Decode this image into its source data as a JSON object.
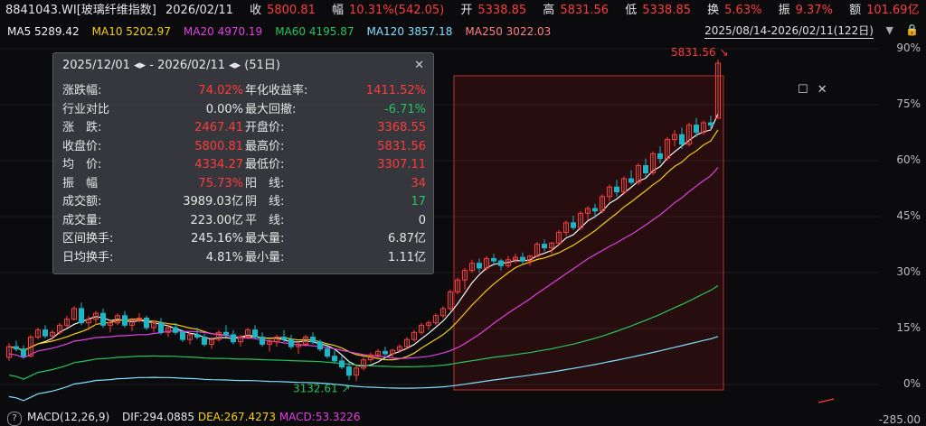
{
  "quote_bar": {
    "code": "8841043.WI[玻璃纤维指数]",
    "date": "2026/02/11",
    "close_label": "收",
    "close": "5800.81",
    "chg_label": "幅",
    "chg": "10.31%(542.05)",
    "open_label": "开",
    "open": "5338.85",
    "high_label": "高",
    "high": "5831.56",
    "low_label": "低",
    "low": "5338.85",
    "turnover_label": "换",
    "turnover": "5.63%",
    "amp_label": "振",
    "amp": "9.37%",
    "amount_label": "额",
    "amount": "101.69亿"
  },
  "ma_bar": {
    "items": [
      {
        "label": "MA5 5289.42",
        "color": "#f5f5f5"
      },
      {
        "label": "MA10 5202.97",
        "color": "#f5d000"
      },
      {
        "label": "MA20 4970.19",
        "color": "#e040e0"
      },
      {
        "label": "MA60 4195.87",
        "color": "#22c55e"
      },
      {
        "label": "MA120 3857.18",
        "color": "#7fe0ff"
      },
      {
        "label": "MA250 3022.03",
        "color": "#ff8080"
      }
    ],
    "range": "2025/08/14-2026/02/11(122日)"
  },
  "y_axis": [
    "90%",
    "75%",
    "60%",
    "45%",
    "30%",
    "15%",
    "0%",
    "-285.00"
  ],
  "stats_panel": {
    "header": "2025/12/01 ◂▸ - 2026/02/11 ◂▸    (51日)",
    "left": [
      {
        "k": "涨跌幅:",
        "v": "74.02%",
        "c": "red"
      },
      {
        "k": "行业对比",
        "v": "0.00%",
        "c": "white"
      },
      {
        "k": "涨　跌:",
        "v": "2467.41",
        "c": "red"
      },
      {
        "k": "收盘价:",
        "v": "5800.81",
        "c": "red"
      },
      {
        "k": "均　价:",
        "v": "4334.27",
        "c": "red"
      },
      {
        "k": "振　幅",
        "v": "75.73%",
        "c": "red"
      },
      {
        "k": "成交额:",
        "v": "3989.03亿",
        "c": "white"
      },
      {
        "k": "成交量:",
        "v": "223.00亿",
        "c": "white"
      },
      {
        "k": "区间换手:",
        "v": "245.16%",
        "c": "white"
      },
      {
        "k": "日均换手:",
        "v": "4.81%",
        "c": "white"
      }
    ],
    "right": [
      {
        "k": "年化收益率:",
        "v": "1411.52%",
        "c": "red"
      },
      {
        "k": "最大回撤:",
        "v": "-6.71%",
        "c": "green"
      },
      {
        "k": "开盘价:",
        "v": "3368.55",
        "c": "red"
      },
      {
        "k": "最高价:",
        "v": "5831.56",
        "c": "red"
      },
      {
        "k": "最低价:",
        "v": "3307.11",
        "c": "red"
      },
      {
        "k": "阳　线:",
        "v": "34",
        "c": "red"
      },
      {
        "k": "阴　线:",
        "v": "17",
        "c": "green"
      },
      {
        "k": "平　线:",
        "v": "0",
        "c": "white"
      },
      {
        "k": "最大量:",
        "v": "6.87亿",
        "c": "white"
      },
      {
        "k": "最小量:",
        "v": "1.11亿",
        "c": "white"
      }
    ]
  },
  "annotations": {
    "high_marker": "5831.56",
    "low_marker": "3132.61"
  },
  "macd_bar": {
    "label": "MACD(12,26,9)",
    "dif": "DIF:294.0885",
    "dea": "DEA:267.4273",
    "macd": "MACD:53.3226"
  },
  "chart_data": {
    "type": "candlestick",
    "candles": [
      [
        3330,
        3450,
        3300,
        3420
      ],
      [
        3420,
        3470,
        3380,
        3400
      ],
      [
        3400,
        3430,
        3320,
        3340
      ],
      [
        3340,
        3520,
        3330,
        3500
      ],
      [
        3500,
        3580,
        3480,
        3560
      ],
      [
        3560,
        3600,
        3490,
        3510
      ],
      [
        3510,
        3560,
        3470,
        3540
      ],
      [
        3540,
        3620,
        3520,
        3600
      ],
      [
        3600,
        3680,
        3580,
        3650
      ],
      [
        3650,
        3760,
        3640,
        3740
      ],
      [
        3740,
        3790,
        3600,
        3620
      ],
      [
        3620,
        3680,
        3560,
        3650
      ],
      [
        3650,
        3720,
        3600,
        3700
      ],
      [
        3700,
        3740,
        3580,
        3600
      ],
      [
        3600,
        3650,
        3540,
        3620
      ],
      [
        3620,
        3700,
        3600,
        3680
      ],
      [
        3680,
        3720,
        3580,
        3600
      ],
      [
        3600,
        3660,
        3550,
        3640
      ],
      [
        3640,
        3700,
        3620,
        3660
      ],
      [
        3660,
        3680,
        3560,
        3580
      ],
      [
        3580,
        3640,
        3540,
        3620
      ],
      [
        3620,
        3660,
        3520,
        3540
      ],
      [
        3540,
        3600,
        3500,
        3580
      ],
      [
        3580,
        3620,
        3520,
        3540
      ],
      [
        3540,
        3560,
        3460,
        3480
      ],
      [
        3480,
        3540,
        3440,
        3520
      ],
      [
        3520,
        3580,
        3480,
        3500
      ],
      [
        3500,
        3530,
        3420,
        3440
      ],
      [
        3440,
        3500,
        3400,
        3480
      ],
      [
        3480,
        3560,
        3460,
        3540
      ],
      [
        3540,
        3600,
        3500,
        3520
      ],
      [
        3520,
        3560,
        3440,
        3460
      ],
      [
        3460,
        3520,
        3420,
        3500
      ],
      [
        3500,
        3580,
        3480,
        3560
      ],
      [
        3560,
        3600,
        3480,
        3500
      ],
      [
        3500,
        3540,
        3420,
        3440
      ],
      [
        3440,
        3480,
        3380,
        3460
      ],
      [
        3460,
        3520,
        3420,
        3500
      ],
      [
        3500,
        3560,
        3460,
        3480
      ],
      [
        3480,
        3520,
        3400,
        3420
      ],
      [
        3420,
        3460,
        3360,
        3440
      ],
      [
        3440,
        3520,
        3420,
        3500
      ],
      [
        3500,
        3540,
        3440,
        3460
      ],
      [
        3460,
        3480,
        3380,
        3400
      ],
      [
        3400,
        3440,
        3320,
        3340
      ],
      [
        3340,
        3400,
        3280,
        3300
      ],
      [
        3300,
        3340,
        3230,
        3250
      ],
      [
        3250,
        3300,
        3140,
        3180
      ],
      [
        3180,
        3260,
        3130,
        3240
      ],
      [
        3240,
        3330,
        3220,
        3310
      ],
      [
        3310,
        3370,
        3290,
        3350
      ],
      [
        3350,
        3400,
        3320,
        3380
      ],
      [
        3380,
        3420,
        3340,
        3360
      ],
      [
        3360,
        3400,
        3320,
        3390
      ],
      [
        3390,
        3440,
        3370,
        3420
      ],
      [
        3420,
        3500,
        3400,
        3480
      ],
      [
        3480,
        3560,
        3460,
        3540
      ],
      [
        3540,
        3620,
        3520,
        3600
      ],
      [
        3600,
        3640,
        3560,
        3620
      ],
      [
        3620,
        3700,
        3600,
        3680
      ],
      [
        3680,
        3760,
        3660,
        3740
      ],
      [
        3740,
        3900,
        3720,
        3880
      ],
      [
        3880,
        4000,
        3860,
        3980
      ],
      [
        3980,
        4080,
        3900,
        4060
      ],
      [
        4060,
        4150,
        4040,
        4120
      ],
      [
        4120,
        4160,
        4040,
        4080
      ],
      [
        4080,
        4180,
        4060,
        4160
      ],
      [
        4160,
        4200,
        4100,
        4140
      ],
      [
        4140,
        4160,
        4060,
        4100
      ],
      [
        4100,
        4180,
        4080,
        4150
      ],
      [
        4150,
        4200,
        4120,
        4170
      ],
      [
        4170,
        4210,
        4110,
        4140
      ],
      [
        4140,
        4190,
        4100,
        4180
      ],
      [
        4180,
        4300,
        4170,
        4280
      ],
      [
        4280,
        4320,
        4220,
        4250
      ],
      [
        4250,
        4300,
        4200,
        4290
      ],
      [
        4290,
        4400,
        4270,
        4380
      ],
      [
        4380,
        4480,
        4350,
        4460
      ],
      [
        4460,
        4520,
        4400,
        4420
      ],
      [
        4420,
        4560,
        4400,
        4540
      ],
      [
        4540,
        4600,
        4480,
        4580
      ],
      [
        4580,
        4620,
        4500,
        4560
      ],
      [
        4560,
        4700,
        4540,
        4680
      ],
      [
        4680,
        4780,
        4640,
        4760
      ],
      [
        4760,
        4820,
        4680,
        4720
      ],
      [
        4720,
        4850,
        4700,
        4830
      ],
      [
        4830,
        4900,
        4780,
        4800
      ],
      [
        4800,
        4960,
        4780,
        4940
      ],
      [
        4940,
        5000,
        4840,
        4880
      ],
      [
        4880,
        5060,
        4860,
        5040
      ],
      [
        5040,
        5100,
        4960,
        5000
      ],
      [
        5000,
        5180,
        4980,
        5160
      ],
      [
        5160,
        5240,
        5100,
        5200
      ],
      [
        5200,
        5260,
        5080,
        5120
      ],
      [
        5120,
        5300,
        5100,
        5280
      ],
      [
        5280,
        5340,
        5180,
        5220
      ],
      [
        5220,
        5320,
        5200,
        5300
      ],
      [
        5300,
        5360,
        5240,
        5280
      ],
      [
        5338.85,
        5831.56,
        5338.85,
        5800.81
      ]
    ]
  }
}
